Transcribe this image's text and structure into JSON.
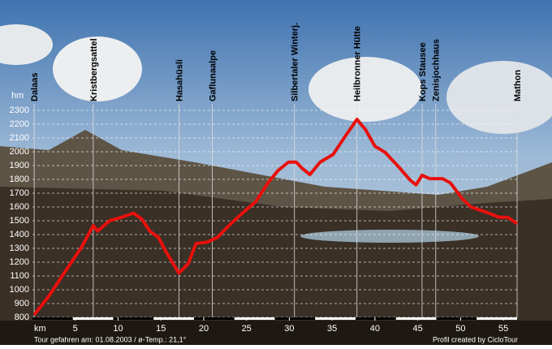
{
  "chart_data": {
    "type": "line",
    "y_unit": "hm",
    "x_label": "km",
    "footer_left": "Tour gefahren am: 01.08.2003  /  ø-Temp.: 21,1°",
    "footer_right": "Profil created by CicloTour",
    "color": "#e8100c",
    "grid": true,
    "xlim": [
      0,
      56.6
    ],
    "ylim": [
      800,
      2300
    ],
    "xticks": [
      5,
      10,
      15,
      20,
      25,
      30,
      35,
      40,
      45,
      50,
      55
    ],
    "yticks": [
      800,
      900,
      1000,
      1100,
      1200,
      1300,
      1400,
      1500,
      1600,
      1700,
      1800,
      1900,
      2000,
      2100,
      2200,
      2300
    ],
    "x": [
      0.2,
      1.9,
      3.8,
      5.7,
      7.1,
      7.6,
      9.0,
      10.4,
      11.8,
      12.8,
      13.7,
      14.7,
      15.6,
      17.1,
      18.2,
      19.1,
      20.4,
      21.6,
      23.2,
      24.6,
      26.1,
      27.5,
      28.7,
      29.9,
      30.8,
      31.5,
      32.4,
      33.6,
      35.1,
      36.5,
      37.9,
      38.9,
      40.0,
      41.2,
      42.7,
      44.1,
      44.8,
      45.5,
      46.4,
      47.9,
      48.8,
      50.2,
      51.2,
      53.1,
      54.5,
      55.5,
      56.6
    ],
    "values": [
      818,
      953,
      1130,
      1305,
      1465,
      1425,
      1500,
      1525,
      1555,
      1510,
      1425,
      1380,
      1275,
      1120,
      1190,
      1335,
      1345,
      1380,
      1480,
      1560,
      1640,
      1775,
      1865,
      1925,
      1925,
      1880,
      1835,
      1925,
      1980,
      2110,
      2235,
      2160,
      2040,
      1995,
      1895,
      1795,
      1760,
      1830,
      1805,
      1805,
      1775,
      1660,
      1600,
      1560,
      1525,
      1525,
      1480
    ],
    "waypoints": [
      {
        "label": "Dalaas",
        "km": 0.2
      },
      {
        "label": "Kristbergsattel",
        "km": 7.1
      },
      {
        "label": "Hasahüsli",
        "km": 17.1
      },
      {
        "label": "Gaflunaalpe",
        "km": 21.0
      },
      {
        "label": "Silbertaler Winterj.",
        "km": 30.6
      },
      {
        "label": "Heilbronner Hütte",
        "km": 37.9
      },
      {
        "label": "Kops Stausee",
        "km": 45.5
      },
      {
        "label": "Zenisjochhaus",
        "km": 47.1
      },
      {
        "label": "Mathon",
        "km": 56.6
      }
    ]
  }
}
